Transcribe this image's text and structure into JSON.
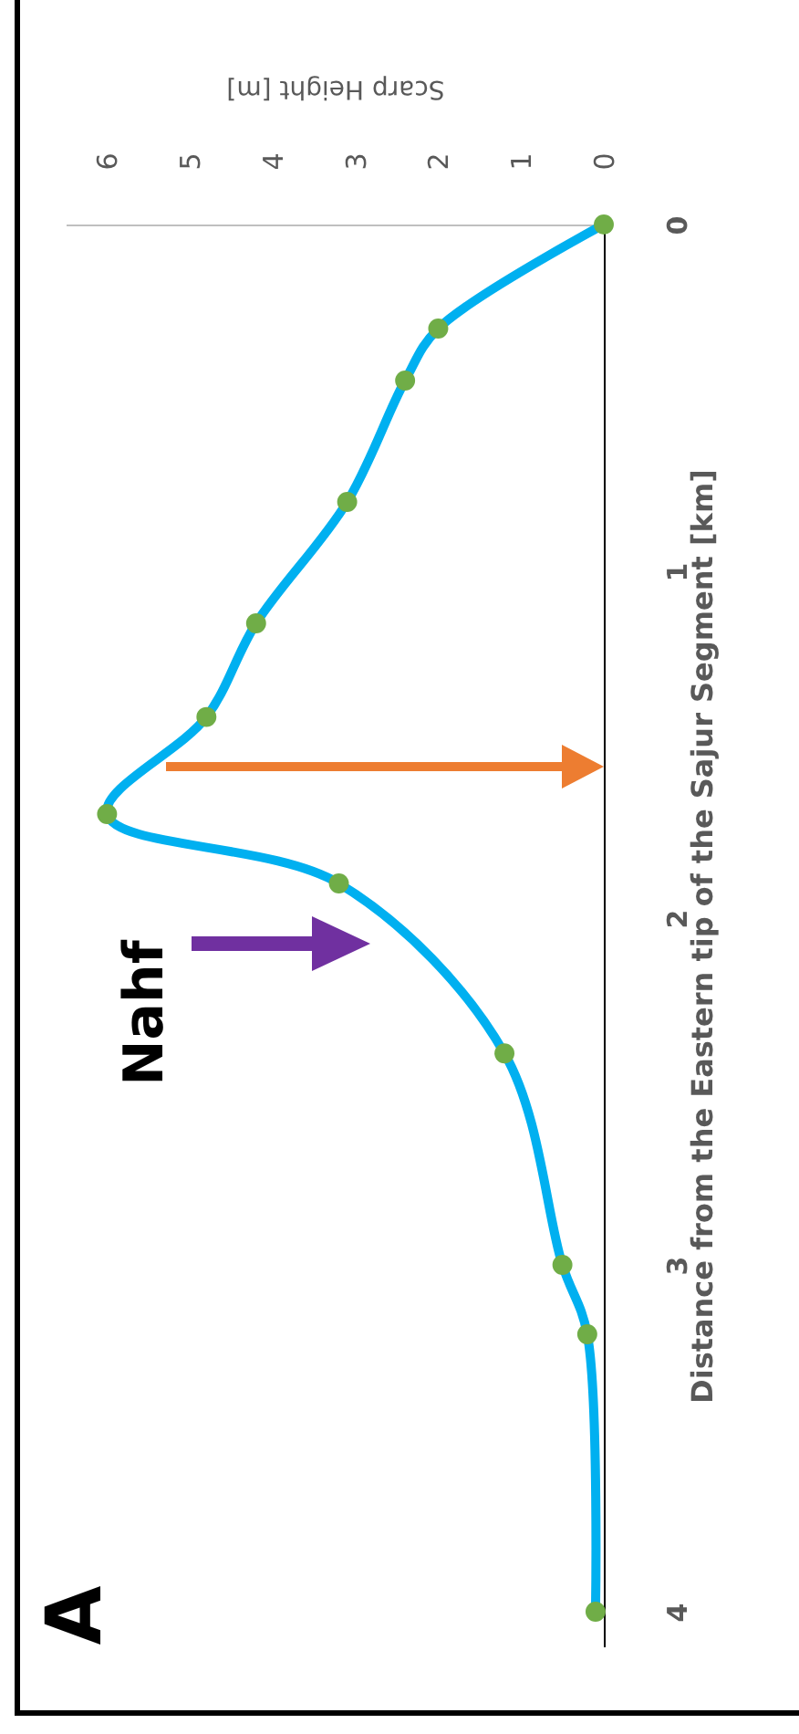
{
  "chart_data": {
    "type": "line",
    "xlabel": "Scarp Height [m]",
    "ylabel": "Distance from the Eastern tip of the Sajur Segment [km]",
    "series": [
      {
        "color": "#00b0f0",
        "colors": [
          "#70ad47",
          "#70ad47",
          "#70ad47",
          "#70ad47",
          "#70ad47",
          "#70ad47",
          "#70ad47",
          "#70ad47",
          "#70ad47",
          "#70ad47",
          "#70ad47",
          "#70ad47"
        ],
        "x": [
          0,
          2.0,
          2.4,
          3.1,
          4.2,
          4.8,
          6.0,
          3.2,
          1.2,
          0.5,
          0.2,
          0.1
        ],
        "values": [
          0,
          0.3,
          0.45,
          0.8,
          1.15,
          1.42,
          1.7,
          1.9,
          2.39,
          3.0,
          3.2,
          4.0
        ]
      }
    ],
    "marker": "circle",
    "line_style": "solid",
    "xlim": [
      6.5,
      0
    ],
    "xticks": [
      0,
      1,
      2,
      3,
      4,
      5,
      6
    ],
    "ylim": [
      4.1,
      0
    ],
    "yticks": [
      0,
      1,
      2,
      3,
      4
    ],
    "annotations": [
      "A",
      "Nahf"
    ]
  }
}
